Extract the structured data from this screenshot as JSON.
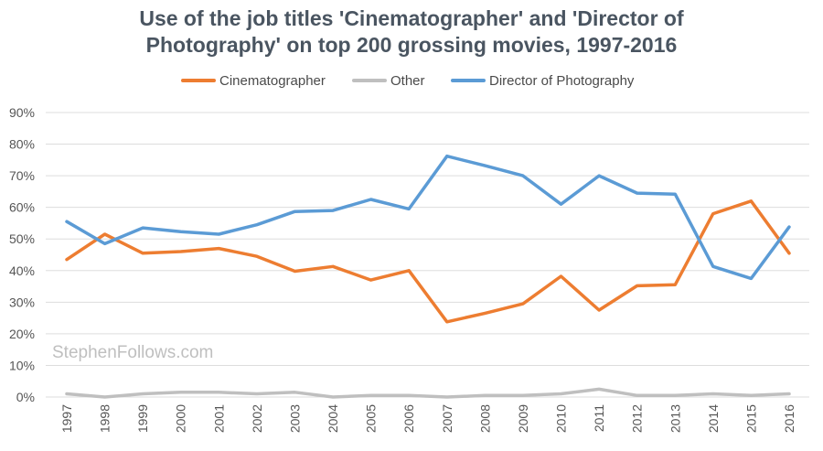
{
  "chart_data": {
    "type": "line",
    "title_line1": "Use of the job titles 'Cinematographer' and 'Director of",
    "title_line2": "Photography' on top 200 grossing movies, 1997-2016",
    "xlabel": "",
    "ylabel": "",
    "ylim": [
      0,
      90
    ],
    "y_ticks": [
      "0%",
      "10%",
      "20%",
      "30%",
      "40%",
      "50%",
      "60%",
      "70%",
      "80%",
      "90%"
    ],
    "grid": true,
    "legend_position": "top",
    "categories": [
      "1997",
      "1998",
      "1999",
      "2000",
      "2001",
      "2002",
      "2003",
      "2004",
      "2005",
      "2006",
      "2007",
      "2008",
      "2009",
      "2010",
      "2011",
      "2012",
      "2013",
      "2014",
      "2015",
      "2016"
    ],
    "series": [
      {
        "name": "Cinematographer",
        "color": "#ed7d31",
        "values": [
          43.5,
          51.5,
          45.5,
          46,
          47,
          44.5,
          39.8,
          41.3,
          37,
          40,
          23.8,
          26.5,
          29.5,
          38.2,
          27.5,
          35.2,
          35.5,
          58,
          62,
          45.5
        ]
      },
      {
        "name": "Other",
        "color": "#bfbfbf",
        "values": [
          1,
          0,
          1,
          1.5,
          1.5,
          1,
          1.5,
          0,
          0.5,
          0.5,
          0,
          0.5,
          0.5,
          1,
          2.5,
          0.5,
          0.5,
          1,
          0.5,
          1
        ]
      },
      {
        "name": "Director of Photography",
        "color": "#5b9bd5",
        "values": [
          55.5,
          48.5,
          53.5,
          52.3,
          51.5,
          54.5,
          58.7,
          59,
          62.5,
          59.5,
          76.2,
          73.2,
          70,
          61,
          70,
          64.5,
          64.2,
          41.3,
          37.5,
          53.8
        ]
      }
    ]
  },
  "watermark": "StephenFollows.com"
}
